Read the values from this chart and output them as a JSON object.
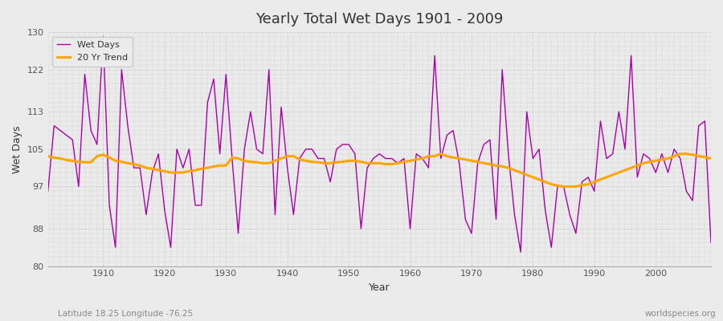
{
  "title": "Yearly Total Wet Days 1901 - 2009",
  "xlabel": "Year",
  "ylabel": "Wet Days",
  "xlim": [
    1901,
    2009
  ],
  "ylim": [
    80,
    130
  ],
  "yticks": [
    80,
    88,
    97,
    105,
    113,
    122,
    130
  ],
  "bg_color": "#ebebeb",
  "plot_bg_color": "#ebebeb",
  "wet_days_color": "#aa00aa",
  "trend_color": "#ffa500",
  "subtitle_left": "Latitude 18.25 Longitude -76.25",
  "subtitle_right": "worldspecies.org",
  "legend_labels": [
    "Wet Days",
    "20 Yr Trend"
  ],
  "wet_days": [
    96,
    110,
    109,
    108,
    107,
    97,
    121,
    109,
    106,
    129,
    93,
    84,
    122,
    110,
    101,
    101,
    91,
    100,
    104,
    92,
    84,
    105,
    101,
    105,
    93,
    93,
    115,
    120,
    104,
    121,
    103,
    87,
    105,
    113,
    105,
    104,
    122,
    91,
    114,
    101,
    91,
    103,
    105,
    105,
    103,
    103,
    98,
    105,
    106,
    106,
    104,
    88,
    101,
    103,
    104,
    103,
    103,
    102,
    103,
    88,
    104,
    103,
    101,
    125,
    103,
    108,
    109,
    102,
    90,
    87,
    102,
    106,
    107,
    90,
    122,
    104,
    91,
    83,
    113,
    103,
    105,
    92,
    84,
    97,
    97,
    91,
    87,
    98,
    99,
    96,
    111,
    103,
    104,
    113,
    105,
    125,
    99,
    104,
    103,
    100,
    104,
    100,
    105,
    103,
    96,
    94,
    110,
    111,
    85
  ],
  "trend": [
    103.5,
    103.2,
    103.0,
    102.7,
    102.5,
    102.3,
    102.2,
    102.2,
    103.5,
    103.8,
    103.2,
    102.5,
    102.3,
    102.0,
    101.8,
    101.5,
    101.0,
    100.8,
    100.5,
    100.3,
    100.0,
    100.0,
    100.0,
    100.3,
    100.5,
    100.8,
    101.0,
    101.3,
    101.5,
    101.5,
    103.2,
    103.0,
    102.5,
    102.3,
    102.2,
    102.0,
    102.0,
    102.5,
    103.0,
    103.5,
    103.5,
    102.8,
    102.5,
    102.3,
    102.2,
    102.0,
    102.0,
    102.2,
    102.3,
    102.5,
    102.5,
    102.3,
    102.0,
    102.0,
    102.0,
    101.8,
    101.8,
    102.0,
    102.3,
    102.5,
    102.8,
    103.0,
    103.5,
    103.5,
    104.0,
    103.5,
    103.2,
    103.0,
    102.8,
    102.5,
    102.3,
    102.0,
    101.8,
    101.5,
    101.3,
    101.0,
    100.5,
    100.0,
    99.5,
    99.0,
    98.5,
    98.0,
    97.5,
    97.2,
    97.0,
    97.0,
    97.0,
    97.3,
    97.5,
    98.0,
    98.5,
    99.0,
    99.5,
    100.0,
    100.5,
    101.0,
    101.5,
    102.0,
    102.3,
    102.5,
    102.8,
    103.0,
    103.5,
    104.0,
    104.0,
    103.8,
    103.5,
    103.3,
    103.0
  ]
}
